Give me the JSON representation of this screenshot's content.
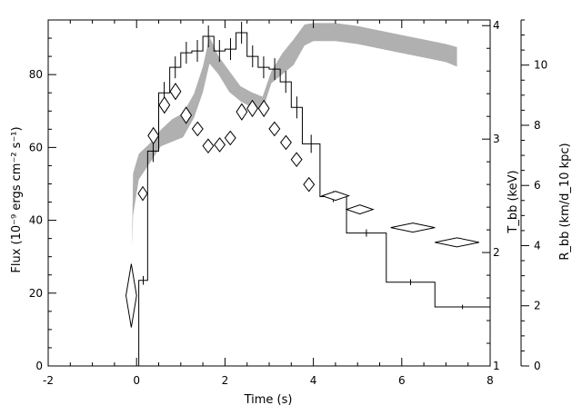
{
  "chart_data": {
    "type": "line",
    "xlabel": "Time (s)",
    "xlim": [
      -2,
      8
    ],
    "x_ticks": [
      -2,
      0,
      2,
      4,
      6,
      8
    ],
    "y_left": {
      "label": "Flux (10⁻⁹ ergs cm⁻² s⁻¹)",
      "lim": [
        0,
        95
      ],
      "ticks": [
        0,
        20,
        40,
        60,
        80
      ]
    },
    "y_right_inner": {
      "label": "T_bb (keV)",
      "lim": [
        1,
        4.05
      ],
      "ticks": [
        1,
        2,
        3,
        4
      ]
    },
    "y_right_outer": {
      "label": "R_bb (km/d_10 kpc)",
      "lim": [
        0,
        11.5
      ],
      "ticks": [
        0,
        2,
        4,
        6,
        8,
        10
      ]
    },
    "series": [
      {
        "kind": "flux_histogram",
        "axis": "left",
        "steps": [
          {
            "x0": -2.0,
            "x1": 0.05,
            "y": 0,
            "err": 0
          },
          {
            "x0": 0.05,
            "x1": 0.25,
            "y": 23.5,
            "err": 1.2
          },
          {
            "x0": 0.25,
            "x1": 0.5,
            "y": 59,
            "err": 3
          },
          {
            "x0": 0.5,
            "x1": 0.75,
            "y": 75,
            "err": 3
          },
          {
            "x0": 0.75,
            "x1": 1.0,
            "y": 82,
            "err": 3
          },
          {
            "x0": 1.0,
            "x1": 1.25,
            "y": 86,
            "err": 3
          },
          {
            "x0": 1.25,
            "x1": 1.5,
            "y": 86.5,
            "err": 3
          },
          {
            "x0": 1.5,
            "x1": 1.75,
            "y": 90.5,
            "err": 3
          },
          {
            "x0": 1.75,
            "x1": 2.0,
            "y": 86.5,
            "err": 3
          },
          {
            "x0": 2.0,
            "x1": 2.25,
            "y": 87,
            "err": 3
          },
          {
            "x0": 2.25,
            "x1": 2.5,
            "y": 91.5,
            "err": 3
          },
          {
            "x0": 2.5,
            "x1": 2.75,
            "y": 85,
            "err": 3
          },
          {
            "x0": 2.75,
            "x1": 3.0,
            "y": 82,
            "err": 3
          },
          {
            "x0": 3.0,
            "x1": 3.25,
            "y": 81.5,
            "err": 3
          },
          {
            "x0": 3.25,
            "x1": 3.5,
            "y": 78,
            "err": 3
          },
          {
            "x0": 3.5,
            "x1": 3.75,
            "y": 71,
            "err": 3
          },
          {
            "x0": 3.75,
            "x1": 4.15,
            "y": 61,
            "err": 2.5
          },
          {
            "x0": 4.15,
            "x1": 4.75,
            "y": 46.5,
            "err": 1.5
          },
          {
            "x0": 4.75,
            "x1": 5.65,
            "y": 36.5,
            "err": 1
          },
          {
            "x0": 5.65,
            "x1": 6.75,
            "y": 23,
            "err": 0.8
          },
          {
            "x0": 6.75,
            "x1": 8.0,
            "y": 16.2,
            "err": 0.6
          }
        ]
      },
      {
        "kind": "temperature_diamonds",
        "axis": "right_inner",
        "points": [
          {
            "x": -0.12,
            "y": 1.62,
            "dx": 0.12,
            "dy": 0.28
          },
          {
            "x": 0.14,
            "y": 2.52,
            "dx": 0.1,
            "dy": 0.06
          },
          {
            "x": 0.38,
            "y": 3.03,
            "dx": 0.12,
            "dy": 0.07
          },
          {
            "x": 0.63,
            "y": 3.3,
            "dx": 0.12,
            "dy": 0.07
          },
          {
            "x": 0.88,
            "y": 3.42,
            "dx": 0.12,
            "dy": 0.07
          },
          {
            "x": 1.12,
            "y": 3.21,
            "dx": 0.12,
            "dy": 0.07
          },
          {
            "x": 1.38,
            "y": 3.09,
            "dx": 0.12,
            "dy": 0.06
          },
          {
            "x": 1.62,
            "y": 2.94,
            "dx": 0.12,
            "dy": 0.06
          },
          {
            "x": 1.88,
            "y": 2.95,
            "dx": 0.12,
            "dy": 0.06
          },
          {
            "x": 2.12,
            "y": 3.01,
            "dx": 0.12,
            "dy": 0.06
          },
          {
            "x": 2.38,
            "y": 3.24,
            "dx": 0.12,
            "dy": 0.07
          },
          {
            "x": 2.62,
            "y": 3.27,
            "dx": 0.12,
            "dy": 0.07
          },
          {
            "x": 2.88,
            "y": 3.27,
            "dx": 0.12,
            "dy": 0.07
          },
          {
            "x": 3.12,
            "y": 3.09,
            "dx": 0.12,
            "dy": 0.06
          },
          {
            "x": 3.38,
            "y": 2.97,
            "dx": 0.12,
            "dy": 0.06
          },
          {
            "x": 3.62,
            "y": 2.82,
            "dx": 0.12,
            "dy": 0.06
          },
          {
            "x": 3.9,
            "y": 2.6,
            "dx": 0.12,
            "dy": 0.06
          },
          {
            "x": 4.5,
            "y": 2.5,
            "dx": 0.3,
            "dy": 0.04
          },
          {
            "x": 5.05,
            "y": 2.38,
            "dx": 0.3,
            "dy": 0.04
          },
          {
            "x": 6.25,
            "y": 2.22,
            "dx": 0.5,
            "dy": 0.035
          },
          {
            "x": 7.25,
            "y": 2.09,
            "dx": 0.5,
            "dy": 0.035
          }
        ]
      },
      {
        "kind": "radius_band",
        "axis": "right_outer",
        "points": [
          {
            "x": -0.1,
            "lo": 4.0,
            "hi": 4.4
          },
          {
            "x": -0.08,
            "lo": 5.0,
            "hi": 6.4
          },
          {
            "x": 0.05,
            "lo": 6.2,
            "hi": 7.05
          },
          {
            "x": 0.3,
            "lo": 6.75,
            "hi": 7.4
          },
          {
            "x": 0.55,
            "lo": 7.3,
            "hi": 7.85
          },
          {
            "x": 0.8,
            "lo": 7.45,
            "hi": 8.2
          },
          {
            "x": 1.05,
            "lo": 7.6,
            "hi": 8.4
          },
          {
            "x": 1.3,
            "lo": 8.25,
            "hi": 9.05
          },
          {
            "x": 1.5,
            "lo": 9.1,
            "hi": 9.95
          },
          {
            "x": 1.65,
            "lo": 10.05,
            "hi": 10.95
          },
          {
            "x": 1.85,
            "lo": 9.7,
            "hi": 10.3
          },
          {
            "x": 2.1,
            "lo": 9.1,
            "hi": 9.8
          },
          {
            "x": 2.35,
            "lo": 8.8,
            "hi": 9.3
          },
          {
            "x": 2.6,
            "lo": 8.6,
            "hi": 9.1
          },
          {
            "x": 2.85,
            "lo": 8.5,
            "hi": 8.95
          },
          {
            "x": 3.05,
            "lo": 9.4,
            "hi": 9.8
          },
          {
            "x": 3.3,
            "lo": 9.7,
            "hi": 10.4
          },
          {
            "x": 3.55,
            "lo": 10.0,
            "hi": 10.85
          },
          {
            "x": 3.8,
            "lo": 10.65,
            "hi": 11.35
          },
          {
            "x": 4.0,
            "lo": 10.8,
            "hi": 11.4
          },
          {
            "x": 4.5,
            "lo": 10.8,
            "hi": 11.4
          },
          {
            "x": 5.0,
            "lo": 10.7,
            "hi": 11.3
          },
          {
            "x": 5.5,
            "lo": 10.55,
            "hi": 11.15
          },
          {
            "x": 6.0,
            "lo": 10.4,
            "hi": 11.0
          },
          {
            "x": 6.5,
            "lo": 10.25,
            "hi": 10.85
          },
          {
            "x": 7.0,
            "lo": 10.1,
            "hi": 10.7
          },
          {
            "x": 7.25,
            "lo": 9.95,
            "hi": 10.6
          }
        ]
      }
    ],
    "colors": {
      "axes": "#000000",
      "band": "#b0b0b0",
      "background": "#ffffff"
    },
    "grid": false
  }
}
